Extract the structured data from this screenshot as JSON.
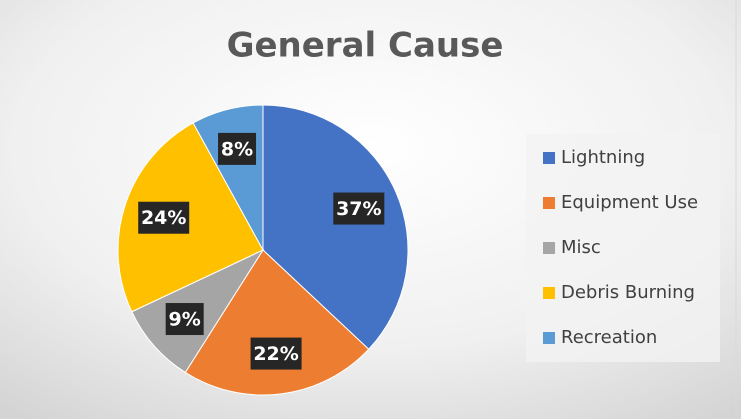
{
  "chart_data": {
    "type": "pie",
    "title": "General Cause",
    "categories": [
      "Lightning",
      "Equipment Use",
      "Misc",
      "Debris Burning",
      "Recreation"
    ],
    "values": [
      37,
      22,
      9,
      24,
      8
    ],
    "value_labels": [
      "37%",
      "22%",
      "9%",
      "24%",
      "8%"
    ],
    "colors": [
      "#4472c4",
      "#ed7d31",
      "#a5a5a5",
      "#ffc000",
      "#5b9bd5"
    ],
    "legend": "right"
  }
}
